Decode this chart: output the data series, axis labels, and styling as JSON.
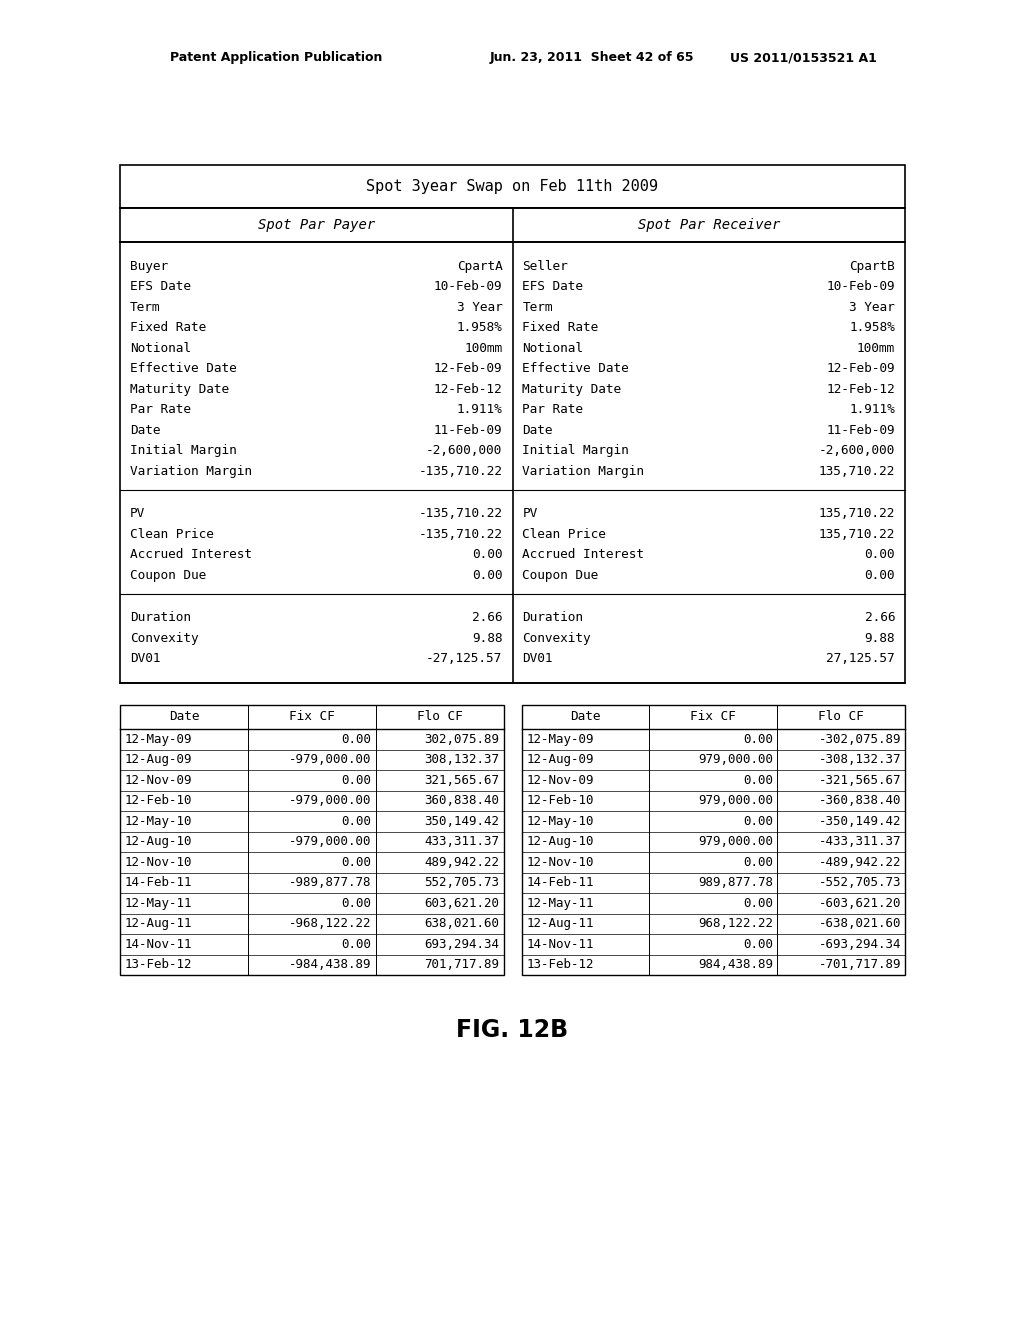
{
  "header_left": "Patent Application Publication",
  "header_mid": "Jun. 23, 2011  Sheet 42 of 65",
  "header_right": "US 2011/0153521 A1",
  "title": "Spot 3year Swap on Feb 11th 2009",
  "payer_header": "Spot Par Payer",
  "receiver_header": "Spot Par Receiver",
  "payer_fields": [
    [
      "Buyer",
      "CpartA"
    ],
    [
      "EFS Date",
      "10-Feb-09"
    ],
    [
      "Term",
      "3 Year"
    ],
    [
      "Fixed Rate",
      "1.958%"
    ],
    [
      "Notional",
      "100mm"
    ],
    [
      "Effective Date",
      "12-Feb-09"
    ],
    [
      "Maturity Date",
      "12-Feb-12"
    ],
    [
      "Par Rate",
      "1.911%"
    ],
    [
      "Date",
      "11-Feb-09"
    ],
    [
      "Initial Margin",
      "-2,600,000"
    ],
    [
      "Variation Margin",
      "-135,710.22"
    ]
  ],
  "payer_fields2": [
    [
      "PV",
      "-135,710.22"
    ],
    [
      "Clean Price",
      "-135,710.22"
    ],
    [
      "Accrued Interest",
      "0.00"
    ],
    [
      "Coupon Due",
      "0.00"
    ]
  ],
  "payer_fields3": [
    [
      "Duration",
      "2.66"
    ],
    [
      "Convexity",
      "9.88"
    ],
    [
      "DV01",
      "-27,125.57"
    ]
  ],
  "receiver_fields": [
    [
      "Seller",
      "CpartB"
    ],
    [
      "EFS Date",
      "10-Feb-09"
    ],
    [
      "Term",
      "3 Year"
    ],
    [
      "Fixed Rate",
      "1.958%"
    ],
    [
      "Notional",
      "100mm"
    ],
    [
      "Effective Date",
      "12-Feb-09"
    ],
    [
      "Maturity Date",
      "12-Feb-12"
    ],
    [
      "Par Rate",
      "1.911%"
    ],
    [
      "Date",
      "11-Feb-09"
    ],
    [
      "Initial Margin",
      "-2,600,000"
    ],
    [
      "Variation Margin",
      "135,710.22"
    ]
  ],
  "receiver_fields2": [
    [
      "PV",
      "135,710.22"
    ],
    [
      "Clean Price",
      "135,710.22"
    ],
    [
      "Accrued Interest",
      "0.00"
    ],
    [
      "Coupon Due",
      "0.00"
    ]
  ],
  "receiver_fields3": [
    [
      "Duration",
      "2.66"
    ],
    [
      "Convexity",
      "9.88"
    ],
    [
      "DV01",
      "27,125.57"
    ]
  ],
  "cf_header": [
    "Date",
    "Fix CF",
    "Flo CF"
  ],
  "payer_cf": [
    [
      "12-May-09",
      "0.00",
      "302,075.89"
    ],
    [
      "12-Aug-09",
      "-979,000.00",
      "308,132.37"
    ],
    [
      "12-Nov-09",
      "0.00",
      "321,565.67"
    ],
    [
      "12-Feb-10",
      "-979,000.00",
      "360,838.40"
    ],
    [
      "12-May-10",
      "0.00",
      "350,149.42"
    ],
    [
      "12-Aug-10",
      "-979,000.00",
      "433,311.37"
    ],
    [
      "12-Nov-10",
      "0.00",
      "489,942.22"
    ],
    [
      "14-Feb-11",
      "-989,877.78",
      "552,705.73"
    ],
    [
      "12-May-11",
      "0.00",
      "603,621.20"
    ],
    [
      "12-Aug-11",
      "-968,122.22",
      "638,021.60"
    ],
    [
      "14-Nov-11",
      "0.00",
      "693,294.34"
    ],
    [
      "13-Feb-12",
      "-984,438.89",
      "701,717.89"
    ]
  ],
  "receiver_cf": [
    [
      "12-May-09",
      "0.00",
      "-302,075.89"
    ],
    [
      "12-Aug-09",
      "979,000.00",
      "-308,132.37"
    ],
    [
      "12-Nov-09",
      "0.00",
      "-321,565.67"
    ],
    [
      "12-Feb-10",
      "979,000.00",
      "-360,838.40"
    ],
    [
      "12-May-10",
      "0.00",
      "-350,149.42"
    ],
    [
      "12-Aug-10",
      "979,000.00",
      "-433,311.37"
    ],
    [
      "12-Nov-10",
      "0.00",
      "-489,942.22"
    ],
    [
      "14-Feb-11",
      "989,877.78",
      "-552,705.73"
    ],
    [
      "12-May-11",
      "0.00",
      "-603,621.20"
    ],
    [
      "12-Aug-11",
      "968,122.22",
      "-638,021.60"
    ],
    [
      "14-Nov-11",
      "0.00",
      "-693,294.34"
    ],
    [
      "13-Feb-12",
      "984,438.89",
      "-701,717.89"
    ]
  ],
  "fig_label": "FIG. 12B",
  "bg_color": "#ffffff"
}
